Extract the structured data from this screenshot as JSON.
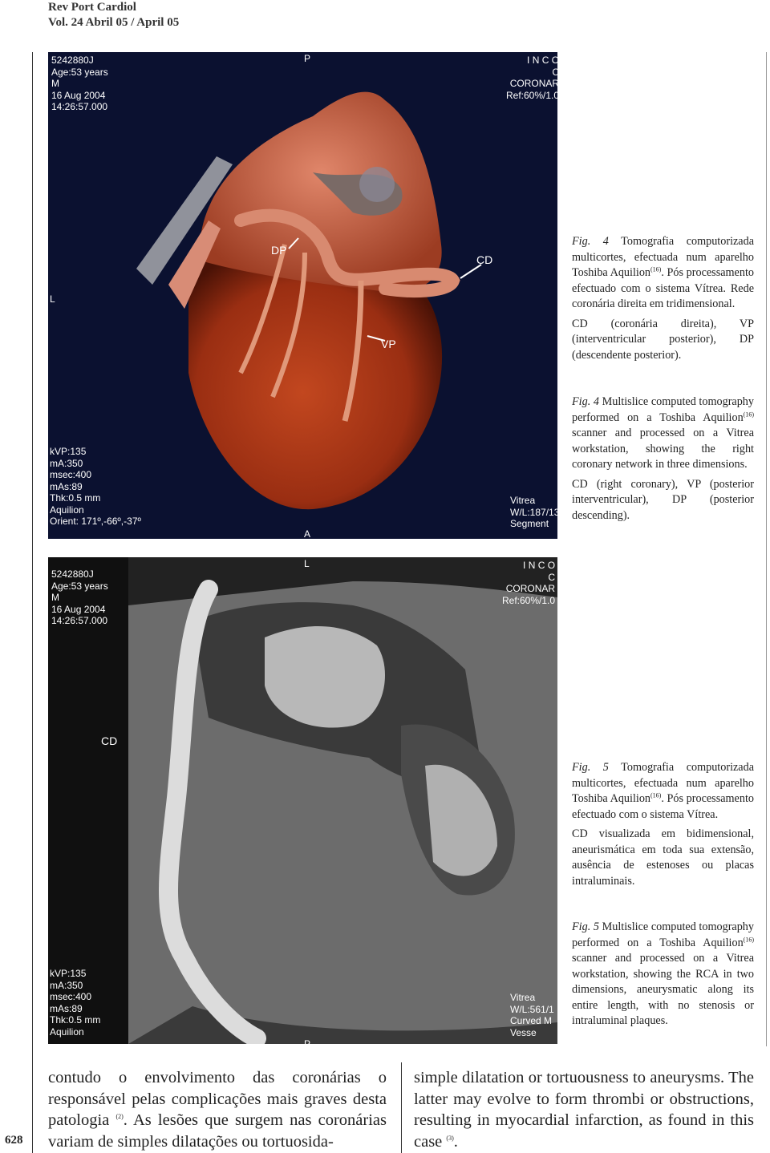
{
  "header": {
    "journal": "Rev Port Cardiol",
    "volume": "Vol. 24  Abril 05 / April 05"
  },
  "page_number": "628",
  "figures": [
    {
      "overlay": {
        "top_left": [
          "5242880J",
          "Age:53 years",
          "M",
          "16 Aug 2004",
          "14:26:57.000"
        ],
        "top_center": "P",
        "top_right": [
          "I N C O",
          "C",
          "CORONAR",
          "Ref:60%/1.0"
        ],
        "left": "L",
        "bottom_left": [
          "kVP:135",
          "mA:350",
          "msec:400",
          "mAs:89",
          "Thk:0.5 mm",
          "Aquilion",
          "Orient: 171º,-66º,-37º"
        ],
        "bottom_right": [
          "Vitrea",
          "W/L:187/13",
          "Segment"
        ],
        "bottom_center": "A",
        "labels": [
          "DP",
          "VP",
          "CD"
        ]
      },
      "captions": [
        {
          "paragraphs": [
            [
              {
                "text": "Fig. 4",
                "kind": "label"
              },
              {
                "text": " Tomografia computorizada multicortes, efectuada num aparelho Toshiba Aquilion"
              },
              {
                "text": "(16)",
                "kind": "sup"
              },
              {
                "text": ". Pós processamento efectuado com o sistema Vítrea. Rede coronária direita em tridimensional."
              }
            ],
            [
              {
                "text": "CD (coronária direita), VP (interventricular posterior), DP (descendente posterior)."
              }
            ]
          ]
        },
        {
          "paragraphs": [
            [
              {
                "text": "Fig. 4",
                "kind": "label"
              },
              {
                "text": " Multislice computed tomography performed on a Toshiba Aquilion"
              },
              {
                "text": "(16)",
                "kind": "sup"
              },
              {
                "text": " scanner and processed on a Vitrea workstation, showing the right coronary network in three dimensions."
              }
            ],
            [
              {
                "text": "CD (right coronary), VP (posterior interventricular), DP (posterior descending)."
              }
            ]
          ]
        }
      ]
    },
    {
      "overlay": {
        "top_left": [
          "5242880J",
          "Age:53 years",
          "M",
          "16 Aug 2004",
          "14:26:57.000"
        ],
        "top_center": "L",
        "top_right": [
          "I N C O",
          "C",
          "CORONAR",
          "Ref:60%/1.0"
        ],
        "left": "CD",
        "bottom_left": [
          "kVP:135",
          "mA:350",
          "msec:400",
          "mAs:89",
          "Thk:0.5 mm",
          "Aquilion"
        ],
        "bottom_right": [
          "Vitrea",
          "W/L:561/1",
          "Curved M",
          "Vesse"
        ],
        "bottom_center": "P",
        "labels": []
      },
      "captions": [
        {
          "paragraphs": [
            [
              {
                "text": "Fig. 5",
                "kind": "label"
              },
              {
                "text": " Tomografia computorizada multicortes, efectuada num aparelho Toshiba Aquilion"
              },
              {
                "text": "(16)",
                "kind": "sup"
              },
              {
                "text": ". Pós processamento efectuado com o sistema Vítrea."
              }
            ],
            [
              {
                "text": "CD visualizada em bidimensional, aneurismática em toda sua extensão, ausência de estenoses ou placas intraluminais."
              }
            ]
          ]
        },
        {
          "paragraphs": [
            [
              {
                "text": "Fig. 5",
                "kind": "label"
              },
              {
                "text": " Multislice computed tomography performed on a Toshiba Aquilion"
              },
              {
                "text": "(16)",
                "kind": "sup"
              },
              {
                "text": " scanner and processed on a Vitrea workstation, showing the RCA in two dimensions, aneurysmatic along its entire length, with no stenosis or intraluminal plaques."
              }
            ]
          ]
        }
      ]
    }
  ],
  "body": [
    [
      {
        "text": "contudo o envolvimento das coronárias o responsável pelas complicações mais graves desta patologia "
      },
      {
        "text": "(2)",
        "kind": "sup"
      },
      {
        "text": ". As lesões que surgem nas coronárias variam de simples dilatações ou tortuosida-"
      }
    ],
    [
      {
        "text": "simple dilatation or tortuousness to aneurysms. The latter may evolve to form thrombi or obstructions, resulting in myocardial infarction, as found in this case "
      },
      {
        "text": "(3)",
        "kind": "sup"
      },
      {
        "text": "."
      }
    ]
  ]
}
